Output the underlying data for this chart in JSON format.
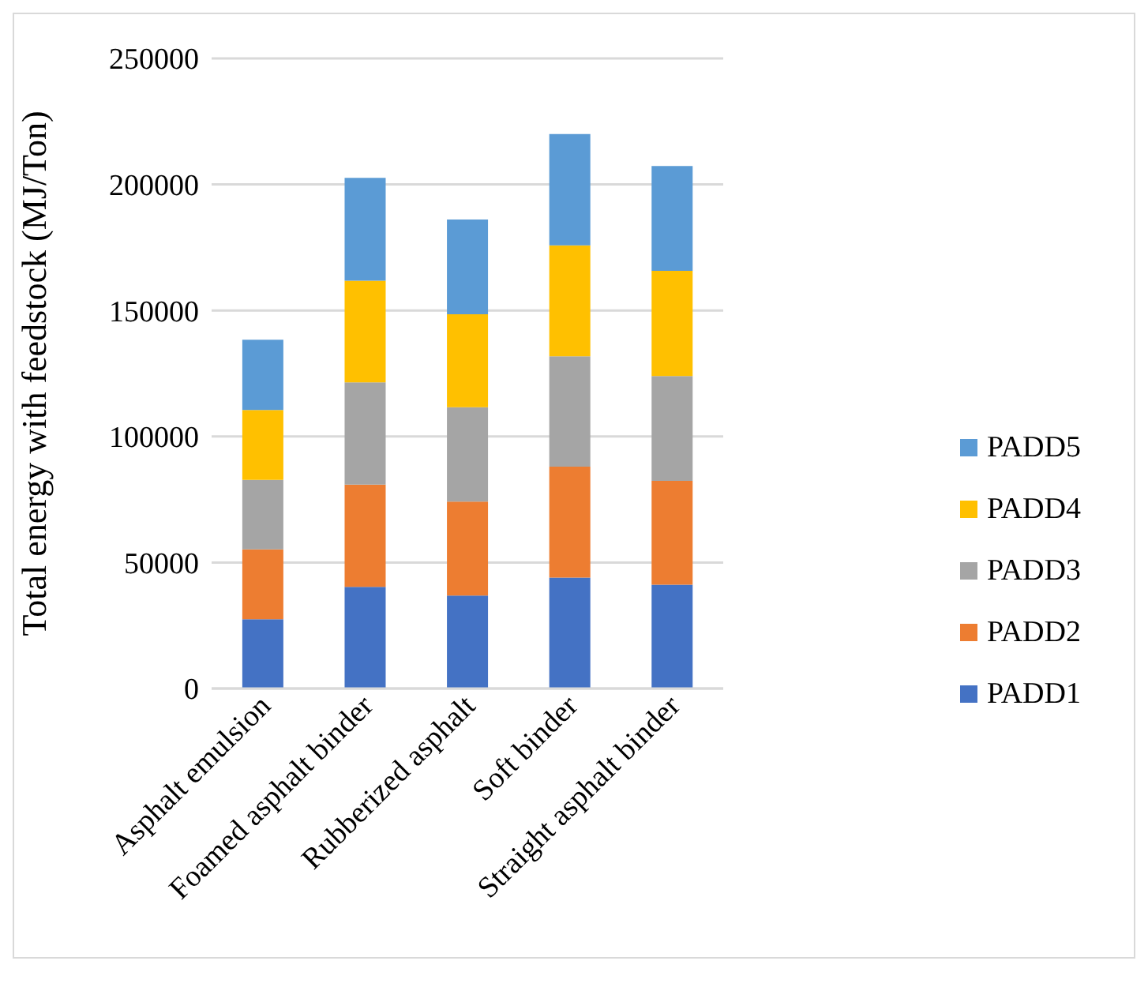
{
  "chart_data": {
    "type": "bar",
    "stacked": true,
    "ylabel": "Total energy with feedstock (MJ/Ton)",
    "categories": [
      "Asphalt emulsion",
      "Foamed asphalt binder",
      "Rubberized asphalt",
      "Soft binder",
      "Straight asphalt binder"
    ],
    "series": [
      {
        "name": "PADD1",
        "color": "#4472c4",
        "values": [
          27500,
          40300,
          36900,
          44000,
          41200
        ]
      },
      {
        "name": "PADD2",
        "color": "#ed7d31",
        "values": [
          27700,
          40600,
          37300,
          44000,
          41200
        ]
      },
      {
        "name": "PADD3",
        "color": "#a5a5a5",
        "values": [
          27600,
          40600,
          37400,
          43800,
          41600
        ]
      },
      {
        "name": "PADD4",
        "color": "#ffc000",
        "values": [
          27700,
          40300,
          36900,
          44000,
          41700
        ]
      },
      {
        "name": "PADD5",
        "color": "#5b9bd5",
        "values": [
          27900,
          40800,
          37600,
          44200,
          41600
        ]
      }
    ],
    "ylim": [
      0,
      250000
    ],
    "yticks": [
      0,
      50000,
      100000,
      150000,
      200000,
      250000
    ],
    "grid": "y",
    "legend": "right"
  }
}
